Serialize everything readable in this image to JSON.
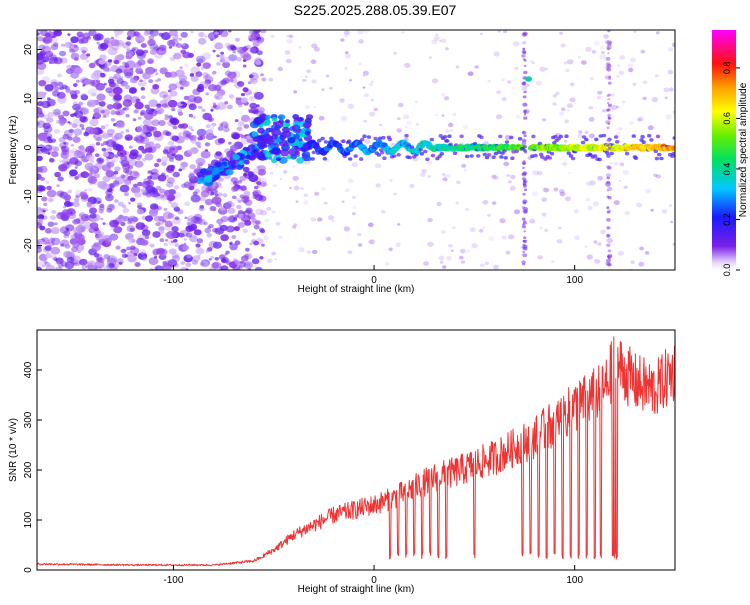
{
  "title": "S225.2025.288.05.39.E07",
  "colors": {
    "line": "#ee3333",
    "axis": "#000000",
    "background": "#ffffff",
    "scatter": "#7a2be0"
  },
  "chart_data": [
    {
      "type": "heatmap",
      "xlabel": "Height of straight line (km)",
      "ylabel": "Frequency (Hz)",
      "xlim": [
        -168,
        150
      ],
      "ylim": [
        -25,
        24
      ],
      "x_ticks": [
        -100,
        0,
        100
      ],
      "y_ticks": [
        -20,
        -10,
        0,
        10,
        20
      ],
      "grid": false,
      "colorbar": {
        "label": "Normalized spectral amplitude",
        "range": [
          0,
          0.95
        ],
        "ticks": [
          "0.0",
          "0.2",
          "0.4",
          "0.6",
          "0.8"
        ],
        "tick_values": [
          0,
          0.2,
          0.4,
          0.6,
          0.8
        ],
        "colormap": "rainbow (violet→blue→cyan→green→yellow→red→magenta)"
      },
      "features": {
        "noise_region_x": [
          -168,
          -55
        ],
        "rising_segment": {
          "x": [
            -88,
            -55
          ],
          "y": [
            -7,
            0
          ]
        },
        "main_band": {
          "x": [
            -35,
            150
          ],
          "y": 0
        },
        "sidelobe_at_x": 77,
        "sidelobe_y": 14,
        "vertical_stripes_x": [
          75,
          117
        ]
      }
    },
    {
      "type": "line",
      "xlabel": "Height of straight line (km)",
      "ylabel": "SNR (10 * v/v)",
      "xlim": [
        -168,
        150
      ],
      "ylim": [
        0,
        480
      ],
      "x_ticks": [
        -100,
        0,
        100
      ],
      "y_ticks": [
        0,
        100,
        200,
        300,
        400
      ],
      "grid": false,
      "series": [
        {
          "x_range": [
            -168,
            150
          ],
          "trend": [
            [
              -168,
              12
            ],
            [
              -120,
              10
            ],
            [
              -80,
              10
            ],
            [
              -60,
              18
            ],
            [
              -50,
              40
            ],
            [
              -40,
              70
            ],
            [
              -30,
              90
            ],
            [
              -20,
              110
            ],
            [
              -10,
              120
            ],
            [
              0,
              130
            ],
            [
              10,
              145
            ],
            [
              20,
              165
            ],
            [
              30,
              185
            ],
            [
              40,
              195
            ],
            [
              50,
              210
            ],
            [
              60,
              225
            ],
            [
              70,
              245
            ],
            [
              80,
              265
            ],
            [
              90,
              295
            ],
            [
              100,
              325
            ],
            [
              110,
              350
            ],
            [
              115,
              360
            ],
            [
              120,
              415
            ],
            [
              130,
              375
            ],
            [
              140,
              360
            ],
            [
              150,
              400
            ]
          ],
          "dropout_x": [
            8,
            12,
            16,
            20,
            24,
            28,
            32,
            36,
            50,
            74,
            78,
            82,
            86,
            90,
            94,
            98,
            102,
            106,
            110,
            113,
            119,
            120,
            121
          ]
        }
      ]
    }
  ]
}
